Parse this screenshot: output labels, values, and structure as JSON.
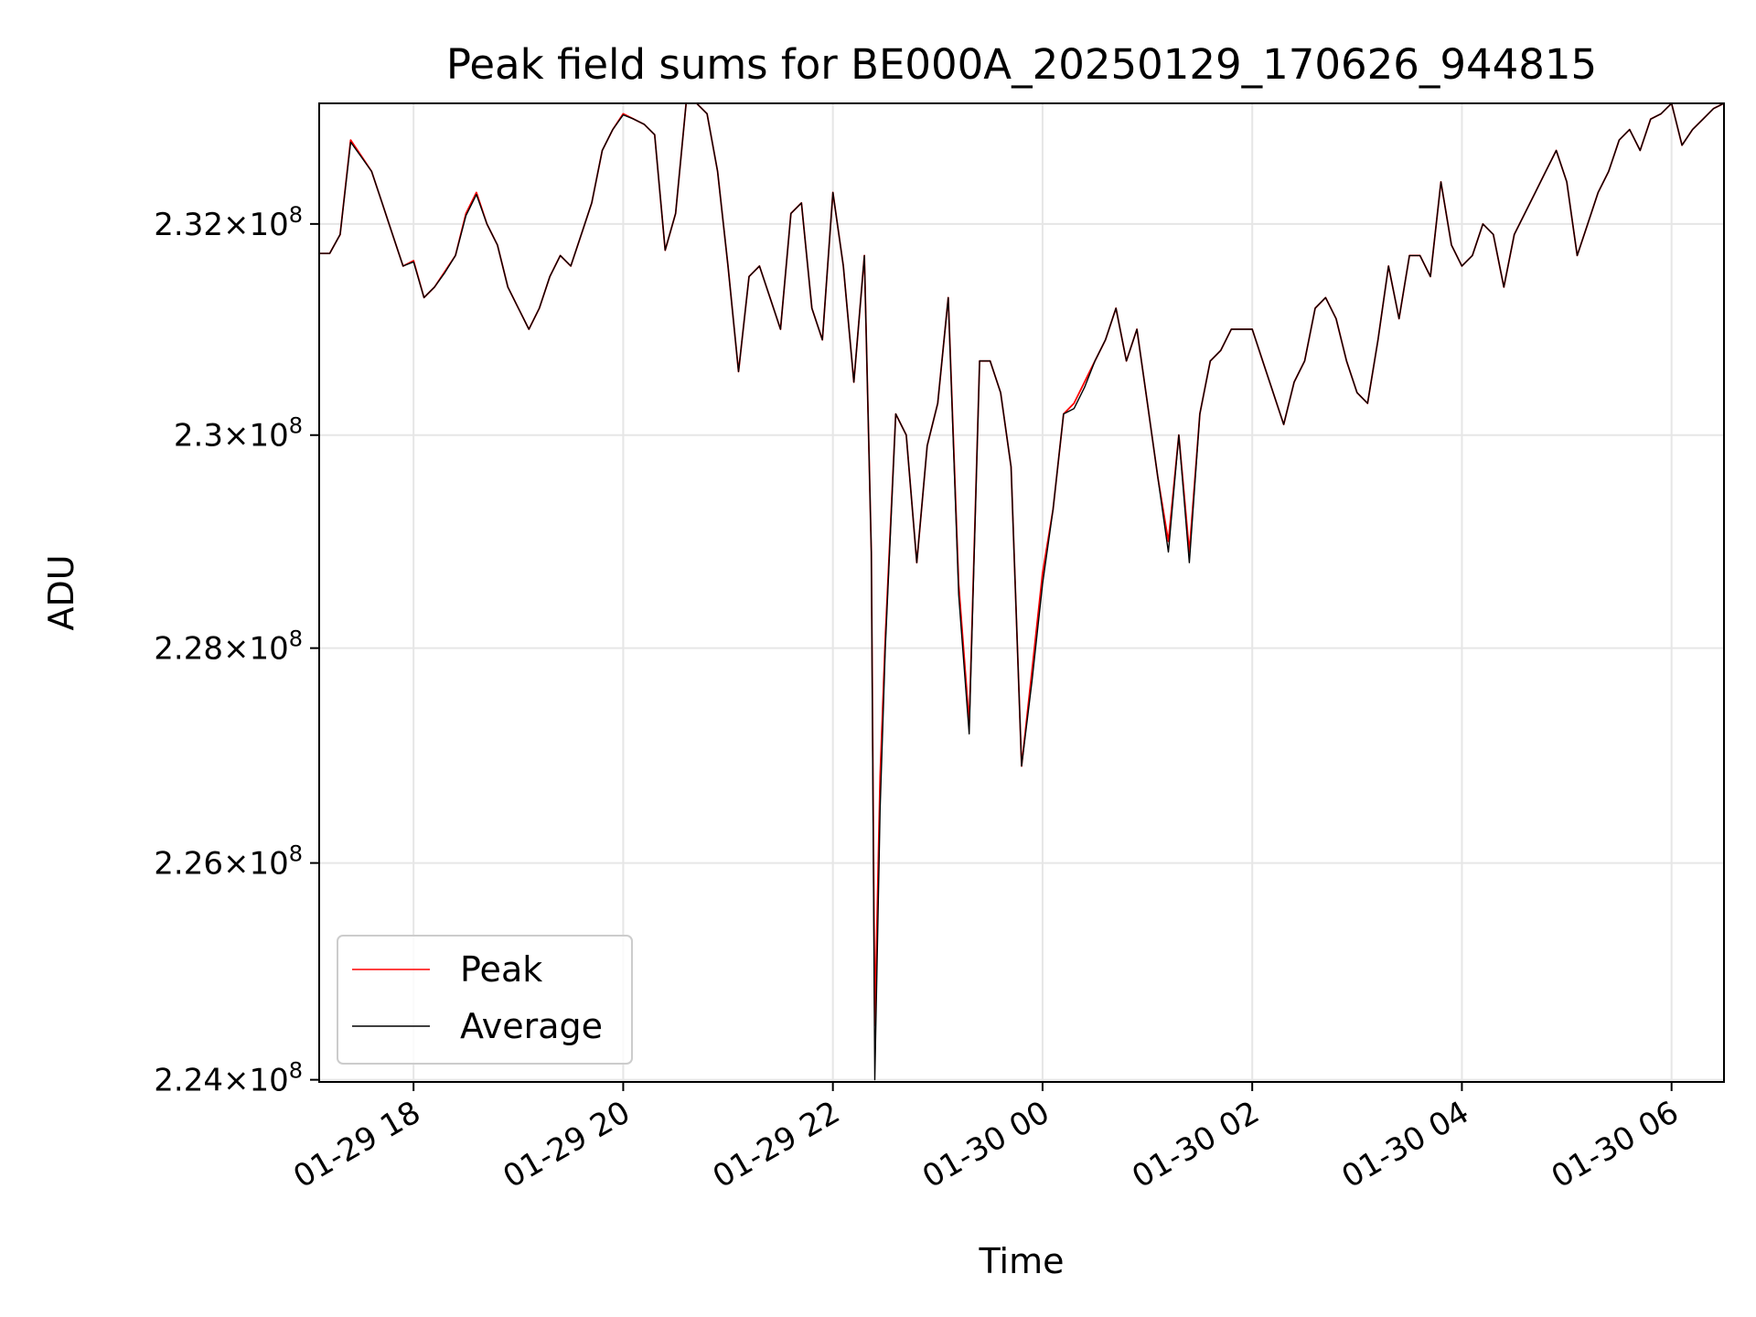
{
  "chart_data": {
    "type": "line",
    "title": "Peak field sums for BE000A_20250129_170626_944815",
    "xlabel": "Time",
    "ylabel": "ADU",
    "x_range": [
      "2025-01-29 17:06",
      "2025-01-30 06:30"
    ],
    "ylim": [
      223980000,
      233150000
    ],
    "y_scale": "log",
    "grid": true,
    "legend_position": "lower-left",
    "x_ticks": [
      "01-29 18",
      "01-29 20",
      "01-29 22",
      "01-30 00",
      "01-30 02",
      "01-30 04",
      "01-30 06"
    ],
    "x_tick_times": [
      "2025-01-29 18:00",
      "2025-01-29 20:00",
      "2025-01-29 22:00",
      "2025-01-30 00:00",
      "2025-01-30 02:00",
      "2025-01-30 04:00",
      "2025-01-30 06:00"
    ],
    "y_ticks": [
      {
        "value": 224000000,
        "mantissa": "2.24",
        "exponent": "8"
      },
      {
        "value": 226000000,
        "mantissa": "2.26",
        "exponent": "8"
      },
      {
        "value": 228000000,
        "mantissa": "2.28",
        "exponent": "8"
      },
      {
        "value": 230000000,
        "mantissa": "2.3",
        "exponent": "8"
      },
      {
        "value": 232000000,
        "mantissa": "2.32",
        "exponent": "8"
      }
    ],
    "times_symbol": "×10",
    "x": [
      "2025-01-29 17:06",
      "2025-01-29 17:12",
      "2025-01-29 17:18",
      "2025-01-29 17:24",
      "2025-01-29 17:30",
      "2025-01-29 17:36",
      "2025-01-29 17:42",
      "2025-01-29 17:48",
      "2025-01-29 17:54",
      "2025-01-29 18:00",
      "2025-01-29 18:06",
      "2025-01-29 18:12",
      "2025-01-29 18:18",
      "2025-01-29 18:24",
      "2025-01-29 18:30",
      "2025-01-29 18:36",
      "2025-01-29 18:42",
      "2025-01-29 18:48",
      "2025-01-29 18:54",
      "2025-01-29 19:00",
      "2025-01-29 19:06",
      "2025-01-29 19:12",
      "2025-01-29 19:18",
      "2025-01-29 19:24",
      "2025-01-29 19:30",
      "2025-01-29 19:36",
      "2025-01-29 19:42",
      "2025-01-29 19:48",
      "2025-01-29 19:54",
      "2025-01-29 20:00",
      "2025-01-29 20:06",
      "2025-01-29 20:12",
      "2025-01-29 20:18",
      "2025-01-29 20:24",
      "2025-01-29 20:30",
      "2025-01-29 20:36",
      "2025-01-29 20:42",
      "2025-01-29 20:48",
      "2025-01-29 20:54",
      "2025-01-29 21:00",
      "2025-01-29 21:06",
      "2025-01-29 21:12",
      "2025-01-29 21:18",
      "2025-01-29 21:24",
      "2025-01-29 21:30",
      "2025-01-29 21:36",
      "2025-01-29 21:42",
      "2025-01-29 21:48",
      "2025-01-29 21:54",
      "2025-01-29 22:00",
      "2025-01-29 22:06",
      "2025-01-29 22:12",
      "2025-01-29 22:18",
      "2025-01-29 22:22",
      "2025-01-29 22:24",
      "2025-01-29 22:27",
      "2025-01-29 22:30",
      "2025-01-29 22:36",
      "2025-01-29 22:42",
      "2025-01-29 22:48",
      "2025-01-29 22:54",
      "2025-01-29 23:00",
      "2025-01-29 23:06",
      "2025-01-29 23:12",
      "2025-01-29 23:18",
      "2025-01-29 23:24",
      "2025-01-29 23:30",
      "2025-01-29 23:36",
      "2025-01-29 23:42",
      "2025-01-29 23:48",
      "2025-01-29 23:54",
      "2025-01-30 00:00",
      "2025-01-30 00:06",
      "2025-01-30 00:12",
      "2025-01-30 00:18",
      "2025-01-30 00:24",
      "2025-01-30 00:30",
      "2025-01-30 00:36",
      "2025-01-30 00:42",
      "2025-01-30 00:48",
      "2025-01-30 00:54",
      "2025-01-30 01:00",
      "2025-01-30 01:06",
      "2025-01-30 01:12",
      "2025-01-30 01:18",
      "2025-01-30 01:24",
      "2025-01-30 01:30",
      "2025-01-30 01:36",
      "2025-01-30 01:42",
      "2025-01-30 01:48",
      "2025-01-30 01:54",
      "2025-01-30 02:00",
      "2025-01-30 02:06",
      "2025-01-30 02:12",
      "2025-01-30 02:18",
      "2025-01-30 02:24",
      "2025-01-30 02:30",
      "2025-01-30 02:36",
      "2025-01-30 02:42",
      "2025-01-30 02:48",
      "2025-01-30 02:54",
      "2025-01-30 03:00",
      "2025-01-30 03:06",
      "2025-01-30 03:12",
      "2025-01-30 03:18",
      "2025-01-30 03:24",
      "2025-01-30 03:30",
      "2025-01-30 03:36",
      "2025-01-30 03:42",
      "2025-01-30 03:48",
      "2025-01-30 03:54",
      "2025-01-30 04:00",
      "2025-01-30 04:06",
      "2025-01-30 04:12",
      "2025-01-30 04:18",
      "2025-01-30 04:24",
      "2025-01-30 04:30",
      "2025-01-30 04:36",
      "2025-01-30 04:42",
      "2025-01-30 04:48",
      "2025-01-30 04:54",
      "2025-01-30 05:00",
      "2025-01-30 05:06",
      "2025-01-30 05:12",
      "2025-01-30 05:18",
      "2025-01-30 05:24",
      "2025-01-30 05:30",
      "2025-01-30 05:36",
      "2025-01-30 05:42",
      "2025-01-30 05:48",
      "2025-01-30 05:54",
      "2025-01-30 06:00",
      "2025-01-30 06:06",
      "2025-01-30 06:12",
      "2025-01-30 06:18",
      "2025-01-30 06:24",
      "2025-01-30 06:30"
    ],
    "series": [
      {
        "name": "Peak",
        "color": "#ff0000",
        "values": [
          231720000,
          231720000,
          231900000,
          232800000,
          232650000,
          232500000,
          232200000,
          231900000,
          231600000,
          231650000,
          231300000,
          231400000,
          231550000,
          231700000,
          232100000,
          232300000,
          232000000,
          231800000,
          231400000,
          231200000,
          231000000,
          231200000,
          231500000,
          231700000,
          231600000,
          231900000,
          232200000,
          232700000,
          232900000,
          233050000,
          233000000,
          232950000,
          232850000,
          231750000,
          232100000,
          233150000,
          233150000,
          233050000,
          232500000,
          231600000,
          230600000,
          231500000,
          231600000,
          231300000,
          231000000,
          232100000,
          232200000,
          231200000,
          230900000,
          232300000,
          231600000,
          230500000,
          231700000,
          228900000,
          224500000,
          226800000,
          228100000,
          230200000,
          230000000,
          228800000,
          229900000,
          230300000,
          231300000,
          228600000,
          227300000,
          230700000,
          230700000,
          230400000,
          229700000,
          226900000,
          227800000,
          228700000,
          229300000,
          230200000,
          230300000,
          230500000,
          230700000,
          230900000,
          231200000,
          230700000,
          231000000,
          230300000,
          229600000,
          229000000,
          230000000,
          228900000,
          230200000,
          230700000,
          230800000,
          231000000,
          231000000,
          231000000,
          230700000,
          230400000,
          230100000,
          230500000,
          230700000,
          231200000,
          231300000,
          231100000,
          230700000,
          230400000,
          230300000,
          230900000,
          231600000,
          231100000,
          231700000,
          231700000,
          231500000,
          232400000,
          231800000,
          231600000,
          231700000,
          232000000,
          231900000,
          231400000,
          231900000,
          232100000,
          232300000,
          232500000,
          232700000,
          232400000,
          231700000,
          232000000,
          232300000,
          232500000,
          232800000,
          232900000,
          232700000,
          233000000,
          233050000,
          233150000,
          232750000,
          232900000,
          233000000,
          233100000,
          233150000
        ]
      },
      {
        "name": "Average",
        "color": "#000000",
        "values": [
          231720000,
          231720000,
          231900000,
          232780000,
          232640000,
          232500000,
          232200000,
          231900000,
          231600000,
          231640000,
          231300000,
          231400000,
          231540000,
          231700000,
          232080000,
          232280000,
          232000000,
          231800000,
          231400000,
          231200000,
          231000000,
          231200000,
          231500000,
          231700000,
          231600000,
          231900000,
          232200000,
          232700000,
          232900000,
          233040000,
          233000000,
          232950000,
          232850000,
          231750000,
          232100000,
          233150000,
          233150000,
          233050000,
          232500000,
          231600000,
          230600000,
          231500000,
          231600000,
          231300000,
          231000000,
          232100000,
          232200000,
          231200000,
          230900000,
          232300000,
          231600000,
          230500000,
          231700000,
          228900000,
          224000000,
          226500000,
          228000000,
          230200000,
          230000000,
          228800000,
          229900000,
          230300000,
          231300000,
          228500000,
          227200000,
          230700000,
          230700000,
          230400000,
          229700000,
          226900000,
          227700000,
          228600000,
          229300000,
          230200000,
          230250000,
          230450000,
          230700000,
          230900000,
          231200000,
          230700000,
          231000000,
          230300000,
          229600000,
          228900000,
          230000000,
          228800000,
          230200000,
          230700000,
          230800000,
          231000000,
          231000000,
          231000000,
          230700000,
          230400000,
          230100000,
          230500000,
          230700000,
          231200000,
          231300000,
          231100000,
          230700000,
          230400000,
          230300000,
          230900000,
          231600000,
          231100000,
          231700000,
          231700000,
          231500000,
          232400000,
          231800000,
          231600000,
          231700000,
          232000000,
          231900000,
          231400000,
          231900000,
          232100000,
          232300000,
          232500000,
          232700000,
          232400000,
          231700000,
          232000000,
          232300000,
          232500000,
          232800000,
          232900000,
          232700000,
          233000000,
          233050000,
          233150000,
          232750000,
          232900000,
          233000000,
          233100000,
          233150000
        ]
      }
    ],
    "legend": [
      {
        "label": "Peak",
        "color": "#ff0000"
      },
      {
        "label": "Average",
        "color": "#000000"
      }
    ]
  }
}
